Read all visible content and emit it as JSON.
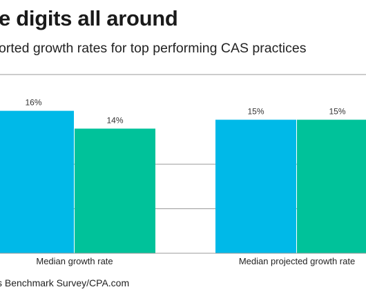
{
  "chart_data": {
    "type": "bar",
    "title": "e digits all around",
    "subtitle": "orted growth rates for top performing CAS practices",
    "categories": [
      "Median growth rate",
      "Median projected growth rate"
    ],
    "series": [
      {
        "color": "#00b9e8",
        "values": [
          16,
          15
        ]
      },
      {
        "color": "#00c29a",
        "values": [
          14,
          15
        ]
      }
    ],
    "value_suffix": "%",
    "ylim": [
      0,
      20
    ],
    "grid": true,
    "xlabel": "",
    "ylabel": "",
    "source": "s Benchmark Survey/CPA.com"
  }
}
